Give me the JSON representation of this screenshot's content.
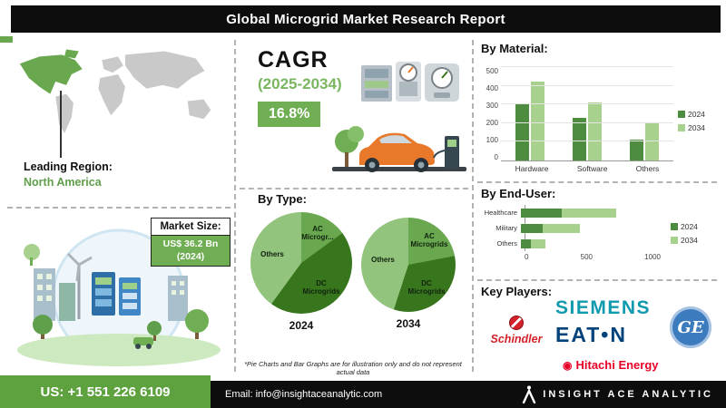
{
  "header": {
    "title": "Global Microgrid Market Research Report"
  },
  "leading_region": {
    "label": "Leading Region:",
    "value": "North America",
    "highlight_color": "#6aa84f"
  },
  "market_size": {
    "label": "Market Size:",
    "value": "US$ 36.2 Bn",
    "year": "(2024)"
  },
  "cagr": {
    "label": "CAGR",
    "period": "(2025-2034)",
    "value": "16.8%",
    "accent_color": "#6fae53"
  },
  "footnote": "*Pie Charts and Bar Graphs are for illustration only and do not represent actual data",
  "icons": {
    "hitachi_mark": "◉"
  },
  "key_players": {
    "label": "Key Players:",
    "items": [
      {
        "name": "Siemens",
        "label": "SIEMENS",
        "color": "#0f9aae"
      },
      {
        "name": "Schindler",
        "label": "Schindler",
        "color": "#d3222a"
      },
      {
        "name": "Eaton",
        "label": "EAT•N",
        "color": "#00437a"
      },
      {
        "name": "GE",
        "label": "GE",
        "color": "#ffffff",
        "bg_color": "#3d7bbf"
      },
      {
        "name": "Hitachi Energy",
        "label": "Hitachi Energy",
        "color": "#e60027"
      }
    ]
  },
  "footer": {
    "phone": "US: +1 551 226 6109",
    "email": "Email: info@insightaceanalytic.com",
    "brand": "INSIGHT ACE ANALYTIC",
    "accent_color": "#5ea13f"
  },
  "chart_data": [
    {
      "id": "by_material",
      "type": "bar",
      "title": "By Material:",
      "categories": [
        "Hardware",
        "Software",
        "Others"
      ],
      "series": [
        {
          "name": "2024",
          "color": "#4e8c3f",
          "values": [
            300,
            230,
            110
          ]
        },
        {
          "name": "2034",
          "color": "#a9d18e",
          "values": [
            420,
            310,
            200
          ]
        }
      ],
      "ylim": [
        0,
        500
      ],
      "yticks": [
        0,
        100,
        200,
        300,
        400,
        500
      ],
      "grid": true,
      "legend_position": "right"
    },
    {
      "id": "by_type_2024",
      "type": "pie",
      "title": "By Type:",
      "year_label": "2024",
      "slices": [
        {
          "label": "AC Microgr...",
          "value": 15,
          "color": "#6aa84f"
        },
        {
          "label": "DC Microgrids",
          "value": 45,
          "color": "#38761d"
        },
        {
          "label": "Others",
          "value": 40,
          "color": "#93c47d"
        }
      ]
    },
    {
      "id": "by_type_2034",
      "type": "pie",
      "title": "By Type:",
      "year_label": "2034",
      "slices": [
        {
          "label": "AC Microgrids",
          "value": 22,
          "color": "#6aa84f"
        },
        {
          "label": "DC Microgrids",
          "value": 33,
          "color": "#38761d"
        },
        {
          "label": "Others",
          "value": 45,
          "color": "#93c47d"
        }
      ]
    },
    {
      "id": "by_end_user",
      "type": "bar-horizontal",
      "title": "By End-User:",
      "categories": [
        "Healthcare",
        "Military",
        "Others"
      ],
      "stacked": true,
      "series": [
        {
          "name": "2024",
          "color": "#4e8c3f",
          "values": [
            300,
            160,
            70
          ]
        },
        {
          "name": "2034",
          "color": "#a9d18e",
          "values": [
            400,
            270,
            110
          ]
        }
      ],
      "xlim": [
        0,
        1000
      ],
      "xticks": [
        0,
        500,
        1000
      ],
      "legend_position": "right"
    }
  ]
}
